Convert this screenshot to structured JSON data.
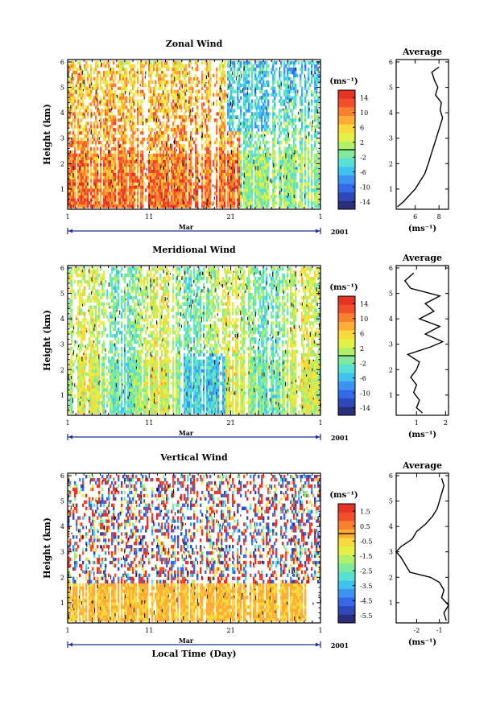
{
  "chart_data": [
    {
      "type": "heatmap",
      "title": "Zonal Wind",
      "ylabel": "Height (km)",
      "xticks": [
        "1",
        "11",
        "21",
        "1"
      ],
      "ylim": [
        0.3,
        6
      ],
      "yticks": [
        "1",
        "2",
        "3",
        "4",
        "5",
        "6"
      ],
      "month": "Mar",
      "year": "2001",
      "colorbar": {
        "unit": "(ms⁻¹)",
        "labels": [
          "14",
          "10",
          "6",
          "2",
          "-2",
          "-6",
          "-10",
          "-14"
        ],
        "range": [
          -16,
          16
        ]
      },
      "colors": [
        "#2b2f7a",
        "#2f48b8",
        "#3569e8",
        "#3f93f0",
        "#3fc2ee",
        "#57e0d3",
        "#7fe99c",
        "#b1ee6a",
        "#e4f046",
        "#f9da3d",
        "#fbad37",
        "#f88130",
        "#f2502b",
        "#e53326"
      ],
      "field": {
        "description_values": "dominant positive westerly wind, weaker above 2 km in late month",
        "profile_low_to_high": [
          0.5,
          2.5
        ]
      },
      "average": {
        "title": "Average",
        "xlabel": "(ms⁻¹)",
        "xticks": [
          "6",
          "8"
        ],
        "xlim": [
          4.4,
          8.8
        ],
        "yticks": [
          "1",
          "2",
          "3",
          "4",
          "5",
          "6"
        ],
        "height": [
          0.3,
          0.5,
          0.8,
          1.0,
          1.3,
          1.6,
          2.0,
          2.3,
          2.6,
          2.9,
          3.2,
          3.5,
          3.8,
          4.1,
          4.4,
          4.7,
          5.0,
          5.3,
          5.6,
          5.8
        ],
        "value": [
          4.5,
          5.0,
          5.6,
          6.0,
          6.4,
          6.8,
          7.1,
          7.3,
          7.5,
          7.7,
          7.9,
          8.1,
          8.3,
          8.1,
          8.2,
          7.7,
          7.9,
          7.6,
          7.4,
          8.0
        ]
      }
    },
    {
      "type": "heatmap",
      "title": "Meridional Wind",
      "ylabel": "Height (km)",
      "xticks": [
        "1",
        "11",
        "21",
        "1"
      ],
      "ylim": [
        0.3,
        6
      ],
      "yticks": [
        "1",
        "2",
        "3",
        "4",
        "5",
        "6"
      ],
      "month": "Mar",
      "year": "2001",
      "colorbar": {
        "unit": "(ms⁻¹)",
        "labels": [
          "14",
          "10",
          "6",
          "2",
          "-2",
          "-6",
          "-10",
          "-14"
        ],
        "range": [
          -16,
          16
        ]
      },
      "colors": [
        "#2b2f7a",
        "#2f48b8",
        "#3569e8",
        "#3f93f0",
        "#3fc2ee",
        "#57e0d3",
        "#7fe99c",
        "#b1ee6a",
        "#e4f046",
        "#f9da3d",
        "#fbad37",
        "#f88130",
        "#f2502b",
        "#e53326"
      ],
      "average": {
        "title": "Average",
        "xlabel": "(ms⁻¹)",
        "xticks": [
          "1",
          "2"
        ],
        "xlim": [
          0.3,
          2.1
        ],
        "yticks": [
          "1",
          "2",
          "3",
          "4",
          "5",
          "6"
        ],
        "height": [
          0.3,
          0.5,
          0.8,
          1.1,
          1.4,
          1.7,
          2.0,
          2.3,
          2.6,
          2.9,
          3.1,
          3.4,
          3.7,
          4.0,
          4.3,
          4.6,
          4.9,
          5.2,
          5.5,
          5.8
        ],
        "value": [
          1.2,
          1.0,
          1.1,
          0.9,
          1.0,
          0.8,
          1.0,
          1.1,
          0.7,
          1.5,
          1.9,
          1.3,
          1.8,
          1.1,
          1.6,
          1.3,
          1.8,
          0.8,
          0.6,
          0.9
        ]
      }
    },
    {
      "type": "heatmap",
      "title": "Vertical Wind",
      "ylabel": "Height (km)",
      "xlabel": "Local Time (Day)",
      "xticks": [
        "1",
        "11",
        "21",
        "1"
      ],
      "ylim": [
        0.3,
        6
      ],
      "yticks": [
        "1",
        "2",
        "3",
        "4",
        "5",
        "6"
      ],
      "month": "Mar",
      "year": "2001",
      "colorbar": {
        "unit": "(ms⁻¹)",
        "labels": [
          "1.5",
          "0.5",
          "-0.5",
          "-1.5",
          "-2.5",
          "-3.5",
          "-4.5",
          "-5.5"
        ],
        "range": [
          -6,
          2
        ]
      },
      "colors": [
        "#2b2f7a",
        "#2f48b8",
        "#3569e8",
        "#3f93f0",
        "#3fc2ee",
        "#57e0d3",
        "#7fe99c",
        "#b1ee6a",
        "#e4f046",
        "#f9da3d",
        "#fbad37",
        "#f88130",
        "#f2502b",
        "#e53326"
      ],
      "average": {
        "title": "Average",
        "xlabel": "(ms⁻¹)",
        "xticks": [
          "-2",
          "-1"
        ],
        "xlim": [
          -2.9,
          -0.6
        ],
        "yticks": [
          "1",
          "2",
          "3",
          "4",
          "5",
          "6"
        ],
        "height": [
          0.3,
          0.6,
          0.9,
          1.2,
          1.5,
          1.8,
          2.0,
          2.2,
          2.5,
          2.8,
          3.0,
          3.2,
          3.5,
          3.8,
          4.1,
          4.4,
          4.7,
          5.0,
          5.3,
          5.6,
          5.9
        ],
        "value": [
          -0.7,
          -0.8,
          -0.6,
          -0.9,
          -0.8,
          -1.0,
          -1.4,
          -2.3,
          -2.5,
          -2.7,
          -2.9,
          -2.7,
          -2.2,
          -2.0,
          -1.6,
          -1.3,
          -1.1,
          -1.0,
          -0.9,
          -0.8,
          -0.9
        ]
      }
    }
  ]
}
